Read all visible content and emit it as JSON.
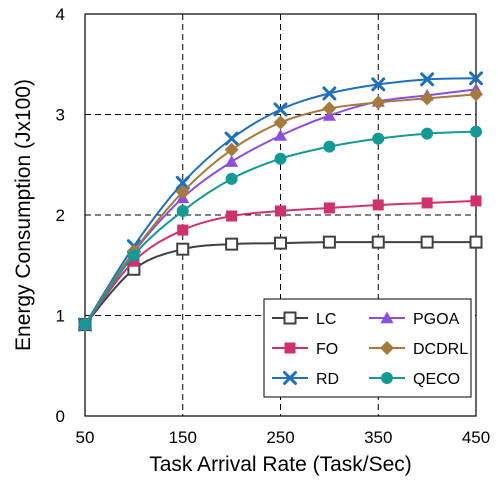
{
  "chart_data": {
    "type": "line",
    "xlabel": "Task Arrival Rate (Task/Sec)",
    "ylabel": "Energy Consumption (Jx100)",
    "xlim": [
      50,
      450
    ],
    "ylim": [
      0,
      4
    ],
    "xticks": [
      50,
      150,
      250,
      350,
      450
    ],
    "yticks": [
      0,
      1,
      2,
      3,
      4
    ],
    "grid": "dashed",
    "legend_position": "bottom-right",
    "x": [
      50,
      100,
      150,
      200,
      250,
      300,
      350,
      400,
      450
    ],
    "series": [
      {
        "name": "LC",
        "marker": "square-open",
        "color": "#404040",
        "values": [
          0.91,
          1.46,
          1.66,
          1.71,
          1.72,
          1.73,
          1.73,
          1.73,
          1.73
        ]
      },
      {
        "name": "FO",
        "marker": "square",
        "color": "#d0316d",
        "values": [
          0.91,
          1.54,
          1.85,
          1.99,
          2.04,
          2.07,
          2.1,
          2.12,
          2.14
        ]
      },
      {
        "name": "RD",
        "marker": "x",
        "color": "#1f6fbf",
        "values": [
          0.91,
          1.69,
          2.32,
          2.76,
          3.05,
          3.21,
          3.3,
          3.35,
          3.36
        ]
      },
      {
        "name": "PGOA",
        "marker": "triangle",
        "color": "#8a4fe0",
        "values": [
          0.91,
          1.63,
          2.17,
          2.53,
          2.79,
          2.99,
          3.13,
          3.19,
          3.25
        ]
      },
      {
        "name": "DCDRL",
        "marker": "diamond",
        "color": "#a57a3c",
        "values": [
          0.91,
          1.64,
          2.23,
          2.65,
          2.92,
          3.06,
          3.12,
          3.16,
          3.2
        ]
      },
      {
        "name": "QECO",
        "marker": "circle",
        "color": "#139a94",
        "values": [
          0.91,
          1.6,
          2.04,
          2.36,
          2.56,
          2.68,
          2.76,
          2.81,
          2.83
        ]
      }
    ]
  }
}
